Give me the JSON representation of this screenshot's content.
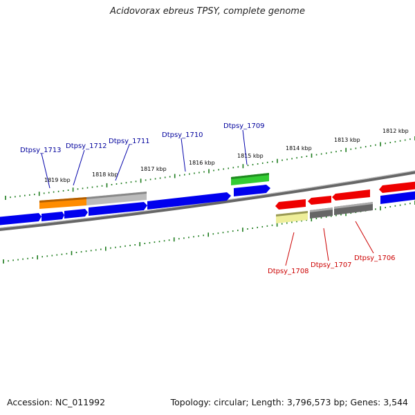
{
  "title": "Acidovorax ebreus TPSY, complete genome",
  "footer": {
    "accession": "Accession: NC_011992",
    "summary": "Topology: circular; Length: 3,796,573 bp; Genes: 3,544"
  },
  "scale_labels": [
    "1819 kbp",
    "1818 kbp",
    "1817 kbp",
    "1816 kbp",
    "1815 kbp",
    "1814 kbp",
    "1813 kbp",
    "1812 kbp"
  ],
  "colors": {
    "gene_blue": "#0000ee",
    "gene_red": "#ee0000",
    "gene_orange": "#ff8c00",
    "gene_grey": "#bbbbbb",
    "gene_darkgrey": "#555555",
    "gene_green": "#33cc33",
    "gene_yellow": "#eeee99",
    "tick_green": "#1a7a1a",
    "label_forward": "#00009c",
    "label_reverse": "#cc0000"
  },
  "genes_forward_labels": [
    "Dtpsy_1713",
    "Dtpsy_1712",
    "Dtpsy_1711",
    "Dtpsy_1710",
    "Dtpsy_1709"
  ],
  "genes_reverse_labels": [
    "Dtpsy_1708",
    "Dtpsy_1707",
    "Dtpsy_1706"
  ]
}
